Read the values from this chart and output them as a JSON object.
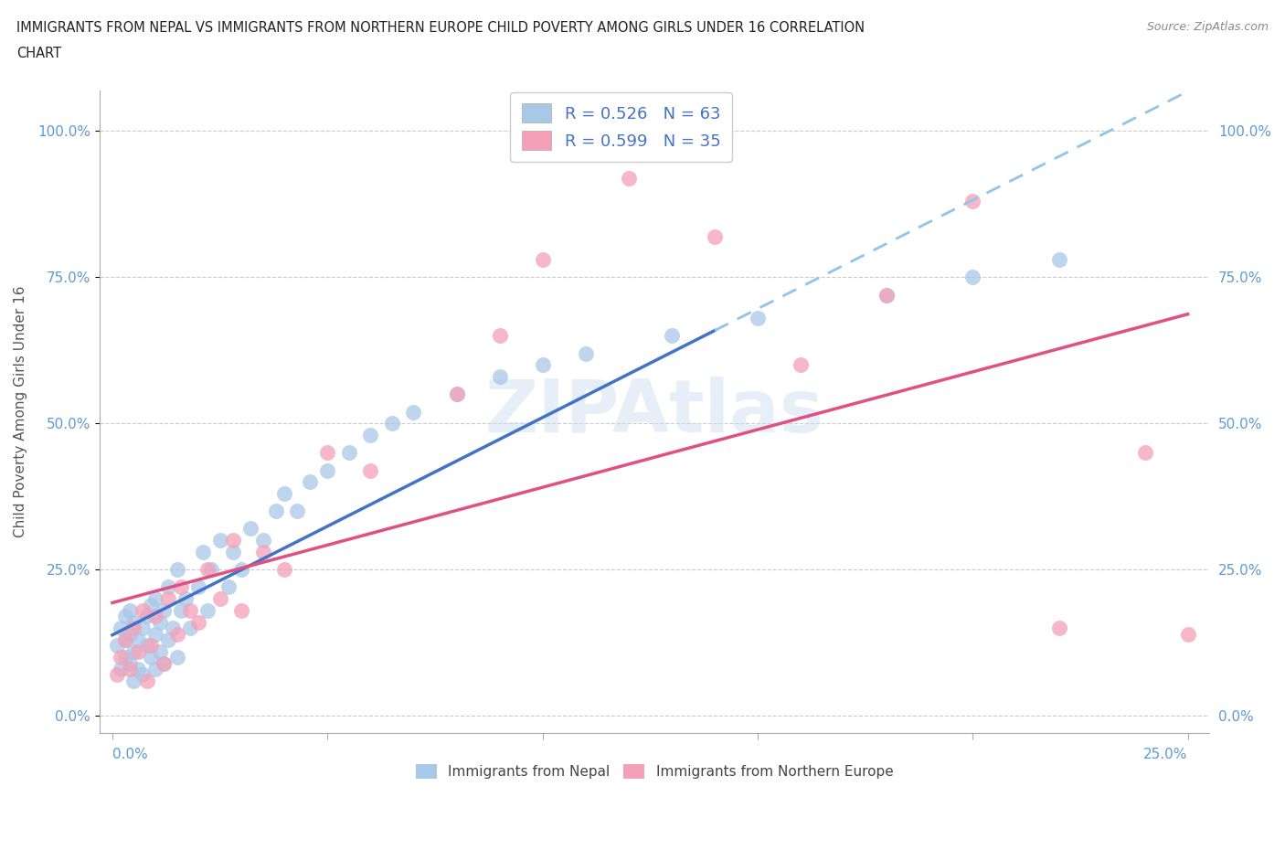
{
  "title_line1": "IMMIGRANTS FROM NEPAL VS IMMIGRANTS FROM NORTHERN EUROPE CHILD POVERTY AMONG GIRLS UNDER 16 CORRELATION",
  "title_line2": "CHART",
  "source": "Source: ZipAtlas.com",
  "ylabel": "Child Poverty Among Girls Under 16",
  "yticks": [
    "0.0%",
    "25.0%",
    "50.0%",
    "75.0%",
    "100.0%"
  ],
  "ytick_vals": [
    0.0,
    0.25,
    0.5,
    0.75,
    1.0
  ],
  "xlim": [
    0.0,
    0.25
  ],
  "ylim": [
    0.0,
    1.05
  ],
  "r_nepal": 0.526,
  "n_nepal": 63,
  "r_northern": 0.599,
  "n_northern": 35,
  "color_nepal": "#a8c8e8",
  "color_northern": "#f4a0b8",
  "line_color_nepal_solid": "#4472c4",
  "line_color_nepal_dashed": "#90c4e8",
  "line_color_northern": "#e05080",
  "legend_text_color": "#4472c4",
  "nepal_x": [
    0.001,
    0.002,
    0.002,
    0.003,
    0.003,
    0.003,
    0.004,
    0.004,
    0.004,
    0.005,
    0.005,
    0.005,
    0.006,
    0.006,
    0.007,
    0.007,
    0.008,
    0.008,
    0.009,
    0.009,
    0.01,
    0.01,
    0.01,
    0.011,
    0.011,
    0.012,
    0.012,
    0.013,
    0.013,
    0.014,
    0.015,
    0.015,
    0.016,
    0.017,
    0.018,
    0.02,
    0.021,
    0.022,
    0.023,
    0.025,
    0.027,
    0.028,
    0.03,
    0.032,
    0.035,
    0.038,
    0.04,
    0.043,
    0.046,
    0.05,
    0.055,
    0.06,
    0.065,
    0.07,
    0.08,
    0.09,
    0.1,
    0.11,
    0.13,
    0.15,
    0.18,
    0.2,
    0.22
  ],
  "nepal_y": [
    0.12,
    0.15,
    0.08,
    0.1,
    0.17,
    0.13,
    0.09,
    0.14,
    0.18,
    0.11,
    0.16,
    0.06,
    0.13,
    0.08,
    0.15,
    0.07,
    0.12,
    0.17,
    0.1,
    0.19,
    0.08,
    0.14,
    0.2,
    0.11,
    0.16,
    0.09,
    0.18,
    0.13,
    0.22,
    0.15,
    0.1,
    0.25,
    0.18,
    0.2,
    0.15,
    0.22,
    0.28,
    0.18,
    0.25,
    0.3,
    0.22,
    0.28,
    0.25,
    0.32,
    0.3,
    0.35,
    0.38,
    0.35,
    0.4,
    0.42,
    0.45,
    0.48,
    0.5,
    0.52,
    0.55,
    0.58,
    0.6,
    0.62,
    0.65,
    0.68,
    0.72,
    0.75,
    0.78
  ],
  "northern_x": [
    0.001,
    0.002,
    0.003,
    0.004,
    0.005,
    0.006,
    0.007,
    0.008,
    0.009,
    0.01,
    0.012,
    0.013,
    0.015,
    0.016,
    0.018,
    0.02,
    0.022,
    0.025,
    0.028,
    0.03,
    0.035,
    0.04,
    0.05,
    0.06,
    0.08,
    0.09,
    0.1,
    0.12,
    0.14,
    0.16,
    0.18,
    0.2,
    0.22,
    0.24,
    0.25
  ],
  "northern_y": [
    0.07,
    0.1,
    0.13,
    0.08,
    0.15,
    0.11,
    0.18,
    0.06,
    0.12,
    0.17,
    0.09,
    0.2,
    0.14,
    0.22,
    0.18,
    0.16,
    0.25,
    0.2,
    0.3,
    0.18,
    0.28,
    0.25,
    0.45,
    0.42,
    0.55,
    0.65,
    0.78,
    0.92,
    0.82,
    0.6,
    0.72,
    0.88,
    0.15,
    0.45,
    0.14
  ],
  "nepal_line_solid_end": 0.14,
  "nepal_line_dashed_start": 0.14
}
